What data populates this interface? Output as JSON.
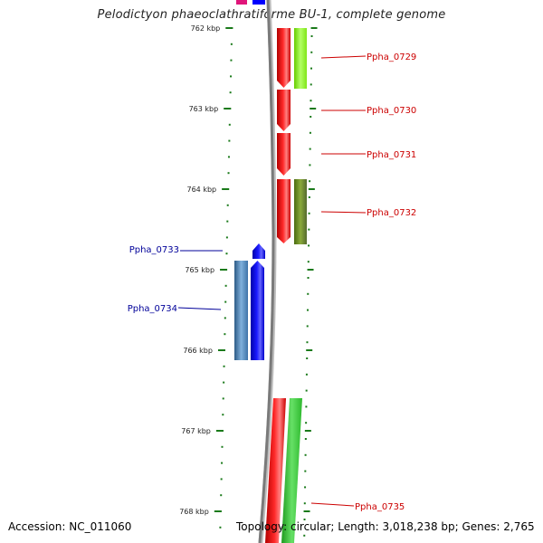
{
  "title": "Pelodictyon phaeoclathratiforme BU-1, complete genome",
  "accession": "Accession: NC_011060",
  "topology": "Topology: circular; Length: 3,018,238 bp; Genes: 2,765",
  "axis": {
    "unit": "kbp",
    "ticks": [
      "762 kbp",
      "763 kbp",
      "764 kbp",
      "765 kbp",
      "766 kbp",
      "767 kbp",
      "768 kbp"
    ]
  },
  "genes": [
    {
      "label": "Ppha_0729",
      "strand": "plus"
    },
    {
      "label": "Ppha_0730",
      "strand": "plus"
    },
    {
      "label": "Ppha_0731",
      "strand": "plus"
    },
    {
      "label": "Ppha_0732",
      "strand": "plus"
    },
    {
      "label": "Ppha_0733",
      "strand": "minus"
    },
    {
      "label": "Ppha_0734",
      "strand": "minus"
    },
    {
      "label": "Ppha_0735",
      "strand": "plus"
    }
  ],
  "colors": {
    "plus_label": "#cc0000",
    "minus_label": "#000099",
    "tick": "#1a7a1a",
    "backbone": "#808080",
    "red": "#ff0000",
    "blue": "#0000ff",
    "lime": "#99ff33",
    "olive": "#6b8e23",
    "steel": "#4682b4",
    "green": "#33cc33",
    "magenta": "#e0157a"
  }
}
